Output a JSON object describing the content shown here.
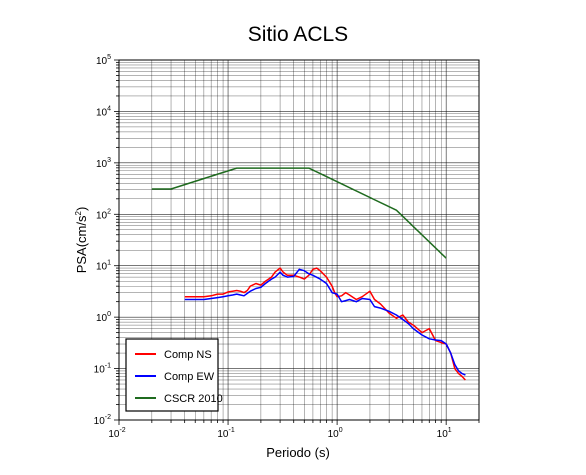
{
  "chart_data": {
    "type": "line",
    "title": "Sitio ACLS",
    "xlabel": "Periodo (s)",
    "ylabel_main": "PSA(cm/s",
    "ylabel_sup": "2",
    "ylabel_tail": ")",
    "xscale": "log",
    "yscale": "log",
    "xlim": [
      0.01,
      20
    ],
    "ylim": [
      0.01,
      100000
    ],
    "grid": true,
    "legend_position": "bottom-left",
    "x_ticks": [
      {
        "base": "10",
        "exp": "-2",
        "value": 0.01
      },
      {
        "base": "10",
        "exp": "-1",
        "value": 0.1
      },
      {
        "base": "10",
        "exp": "0",
        "value": 1
      },
      {
        "base": "10",
        "exp": "1",
        "value": 10
      }
    ],
    "y_ticks": [
      {
        "base": "10",
        "exp": "-2",
        "value": 0.01
      },
      {
        "base": "10",
        "exp": "-1",
        "value": 0.1
      },
      {
        "base": "10",
        "exp": "0",
        "value": 1
      },
      {
        "base": "10",
        "exp": "1",
        "value": 10
      },
      {
        "base": "10",
        "exp": "2",
        "value": 100
      },
      {
        "base": "10",
        "exp": "3",
        "value": 1000
      },
      {
        "base": "10",
        "exp": "4",
        "value": 10000
      },
      {
        "base": "10",
        "exp": "5",
        "value": 100000
      }
    ],
    "series": [
      {
        "name": "Comp NS",
        "color": "#ff0000",
        "points": [
          [
            0.04,
            2.5
          ],
          [
            0.05,
            2.5
          ],
          [
            0.06,
            2.5
          ],
          [
            0.07,
            2.6
          ],
          [
            0.08,
            2.8
          ],
          [
            0.09,
            2.8
          ],
          [
            0.1,
            3.1
          ],
          [
            0.11,
            3.2
          ],
          [
            0.12,
            3.3
          ],
          [
            0.13,
            3.2
          ],
          [
            0.14,
            3.0
          ],
          [
            0.15,
            3.3
          ],
          [
            0.16,
            4.0
          ],
          [
            0.18,
            4.5
          ],
          [
            0.2,
            4.2
          ],
          [
            0.22,
            5.0
          ],
          [
            0.25,
            6.0
          ],
          [
            0.27,
            7.5
          ],
          [
            0.29,
            8.5
          ],
          [
            0.3,
            9.0
          ],
          [
            0.32,
            7.5
          ],
          [
            0.35,
            6.5
          ],
          [
            0.4,
            6.5
          ],
          [
            0.45,
            6.0
          ],
          [
            0.5,
            5.5
          ],
          [
            0.55,
            6.5
          ],
          [
            0.6,
            8.5
          ],
          [
            0.65,
            9.0
          ],
          [
            0.7,
            8.0
          ],
          [
            0.8,
            6.0
          ],
          [
            0.9,
            4.0
          ],
          [
            0.95,
            3.0
          ],
          [
            1.0,
            2.5
          ],
          [
            1.1,
            2.6
          ],
          [
            1.2,
            3.0
          ],
          [
            1.3,
            2.7
          ],
          [
            1.5,
            2.2
          ],
          [
            1.7,
            2.5
          ],
          [
            2.0,
            3.2
          ],
          [
            2.2,
            2.2
          ],
          [
            2.5,
            1.8
          ],
          [
            3.0,
            1.2
          ],
          [
            3.5,
            0.95
          ],
          [
            4.0,
            1.1
          ],
          [
            4.5,
            0.8
          ],
          [
            5.0,
            0.7
          ],
          [
            6.0,
            0.5
          ],
          [
            7.0,
            0.6
          ],
          [
            8.0,
            0.35
          ],
          [
            9.0,
            0.32
          ],
          [
            10.0,
            0.3
          ],
          [
            11.0,
            0.2
          ],
          [
            12.0,
            0.1
          ],
          [
            13.0,
            0.08
          ],
          [
            14.0,
            0.07
          ],
          [
            15.0,
            0.06
          ]
        ]
      },
      {
        "name": "Comp EW",
        "color": "#0000ff",
        "points": [
          [
            0.04,
            2.2
          ],
          [
            0.05,
            2.2
          ],
          [
            0.06,
            2.2
          ],
          [
            0.07,
            2.3
          ],
          [
            0.08,
            2.4
          ],
          [
            0.09,
            2.5
          ],
          [
            0.1,
            2.6
          ],
          [
            0.11,
            2.7
          ],
          [
            0.12,
            2.8
          ],
          [
            0.13,
            2.7
          ],
          [
            0.14,
            2.6
          ],
          [
            0.15,
            2.9
          ],
          [
            0.16,
            3.2
          ],
          [
            0.18,
            3.6
          ],
          [
            0.2,
            3.8
          ],
          [
            0.22,
            4.5
          ],
          [
            0.25,
            5.5
          ],
          [
            0.27,
            6.0
          ],
          [
            0.3,
            7.5
          ],
          [
            0.32,
            6.5
          ],
          [
            0.35,
            6.0
          ],
          [
            0.4,
            6.2
          ],
          [
            0.45,
            8.5
          ],
          [
            0.5,
            8.0
          ],
          [
            0.55,
            7.0
          ],
          [
            0.6,
            6.5
          ],
          [
            0.7,
            5.5
          ],
          [
            0.8,
            4.5
          ],
          [
            0.9,
            3.0
          ],
          [
            1.0,
            2.8
          ],
          [
            1.1,
            2.0
          ],
          [
            1.2,
            2.1
          ],
          [
            1.3,
            2.2
          ],
          [
            1.5,
            2.0
          ],
          [
            1.7,
            2.3
          ],
          [
            2.0,
            2.2
          ],
          [
            2.2,
            1.6
          ],
          [
            2.5,
            1.5
          ],
          [
            3.0,
            1.3
          ],
          [
            3.5,
            1.1
          ],
          [
            4.0,
            0.9
          ],
          [
            4.5,
            0.75
          ],
          [
            5.0,
            0.6
          ],
          [
            6.0,
            0.45
          ],
          [
            7.0,
            0.38
          ],
          [
            8.0,
            0.36
          ],
          [
            9.0,
            0.35
          ],
          [
            10.0,
            0.3
          ],
          [
            11.0,
            0.2
          ],
          [
            12.0,
            0.12
          ],
          [
            13.0,
            0.09
          ],
          [
            14.0,
            0.08
          ],
          [
            15.0,
            0.075
          ]
        ]
      },
      {
        "name": "CSCR 2010",
        "color": "#1f6b1f",
        "points": [
          [
            0.02,
            310
          ],
          [
            0.03,
            310
          ],
          [
            0.12,
            790
          ],
          [
            0.55,
            790
          ],
          [
            3.5,
            120
          ],
          [
            10.0,
            14
          ]
        ]
      }
    ]
  }
}
